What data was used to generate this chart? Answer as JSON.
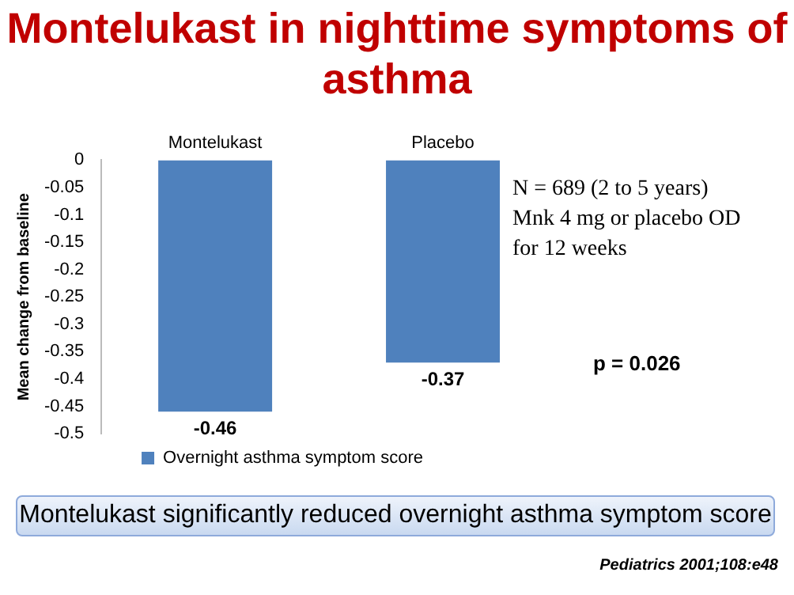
{
  "chart_data": {
    "type": "bar",
    "title": "Montelukast in nighttime symptoms of asthma",
    "ylabel": "Mean change from baseline",
    "categories": [
      "Montelukast",
      "Placebo"
    ],
    "series": [
      {
        "name": "Overnight asthma symptom score",
        "color": "#4f81bd",
        "values": [
          -0.46,
          -0.37
        ]
      }
    ],
    "ylim": [
      -0.5,
      0
    ],
    "yticks": [
      0,
      -0.05,
      -0.1,
      -0.15,
      -0.2,
      -0.25,
      -0.3,
      -0.35,
      -0.4,
      -0.45,
      -0.5
    ],
    "data_labels": true,
    "grid": false,
    "legend": "bottom",
    "annotations": [
      "N = 689 (2 to 5 years)\nMnk 4 mg or placebo OD\nfor 12 weeks",
      "p = 0.026",
      "Montelukast significantly reduced overnight asthma symptom score",
      "Pediatrics 2001;108:e48"
    ]
  }
}
